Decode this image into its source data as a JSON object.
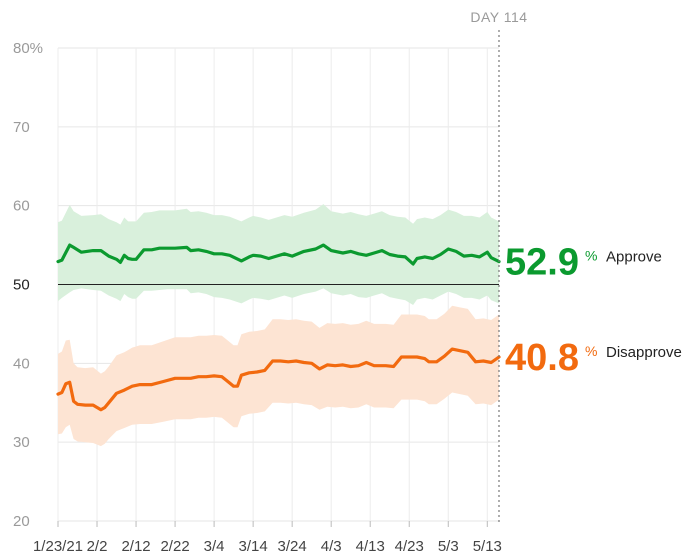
{
  "chart_data": {
    "type": "line",
    "x_ticks": [
      "1/23/21",
      "2/2",
      "2/12",
      "2/22",
      "3/4",
      "3/14",
      "3/24",
      "4/3",
      "4/13",
      "4/23",
      "5/3",
      "5/13"
    ],
    "y_ticks": [
      "80%",
      "70",
      "60",
      "50",
      "40",
      "30",
      "20"
    ],
    "ylim": [
      20,
      80
    ],
    "day_marker": "DAY 114",
    "reference_line": 50,
    "series": [
      {
        "name": "Approve",
        "color": "#0b9a2f",
        "band_color": "#d9f0dc",
        "current_value": "52.9",
        "pct_symbol": "%",
        "x_days": [
          0,
          1,
          3,
          4,
          6,
          9,
          11,
          13,
          15,
          16,
          17,
          18,
          19,
          20,
          22,
          24,
          26,
          28,
          30,
          33,
          34,
          36,
          38,
          40,
          42,
          44,
          47,
          49,
          50,
          52,
          54,
          56,
          58,
          60,
          63,
          66,
          68,
          70,
          73,
          75,
          77,
          79,
          81,
          83,
          85,
          87,
          89,
          91,
          92,
          94,
          96,
          98,
          100,
          102,
          104,
          106,
          108,
          110,
          111,
          113
        ],
        "values": [
          52.9,
          53.1,
          55.0,
          54.7,
          54.1,
          54.3,
          54.3,
          53.6,
          53.2,
          52.8,
          53.7,
          53.3,
          53.2,
          53.2,
          54.4,
          54.4,
          54.6,
          54.6,
          54.6,
          54.7,
          54.3,
          54.4,
          54.2,
          53.9,
          53.9,
          53.7,
          53.0,
          53.5,
          53.7,
          53.6,
          53.3,
          53.6,
          53.9,
          53.6,
          54.2,
          54.5,
          55.0,
          54.3,
          54.0,
          54.2,
          53.9,
          53.7,
          54.0,
          54.3,
          53.8,
          53.6,
          53.5,
          52.6,
          53.3,
          53.5,
          53.3,
          53.8,
          54.5,
          54.2,
          53.6,
          53.7,
          53.5,
          54.1,
          53.4,
          52.9
        ],
        "low": [
          47.9,
          48.3,
          49.0,
          49.3,
          49.5,
          49.3,
          49.2,
          48.6,
          48.2,
          47.9,
          48.8,
          48.4,
          48.2,
          48.2,
          49.2,
          49.2,
          49.3,
          49.4,
          49.4,
          49.4,
          48.9,
          49.0,
          48.8,
          48.4,
          48.3,
          48.1,
          47.6,
          48.1,
          48.3,
          48.2,
          48.0,
          48.3,
          48.6,
          48.3,
          48.8,
          49.1,
          49.5,
          48.9,
          48.6,
          48.8,
          48.4,
          48.3,
          48.6,
          48.9,
          48.4,
          48.2,
          48.0,
          47.4,
          48.1,
          48.3,
          48.1,
          48.6,
          49.1,
          48.8,
          48.3,
          48.3,
          48.1,
          48.6,
          48.0,
          47.6
        ],
        "high": [
          57.9,
          58.1,
          60.1,
          59.3,
          58.7,
          58.8,
          58.9,
          58.3,
          57.9,
          57.6,
          58.5,
          58.0,
          58.0,
          58.0,
          59.1,
          59.2,
          59.4,
          59.4,
          59.4,
          59.6,
          59.2,
          59.3,
          59.1,
          58.8,
          58.8,
          58.6,
          58.0,
          58.5,
          58.7,
          58.5,
          58.2,
          58.5,
          58.8,
          58.6,
          59.1,
          59.5,
          60.2,
          59.3,
          59.0,
          59.2,
          58.9,
          58.7,
          59.0,
          59.3,
          58.8,
          58.6,
          58.5,
          57.7,
          58.3,
          58.5,
          58.3,
          58.8,
          59.5,
          59.2,
          58.7,
          58.7,
          58.5,
          59.2,
          58.5,
          58.0
        ]
      },
      {
        "name": "Disapprove",
        "color": "#f26a0f",
        "band_color": "#fde4d3",
        "current_value": "40.8",
        "pct_symbol": "%",
        "x_days": [
          0,
          1,
          2,
          3,
          4,
          5,
          7,
          9,
          11,
          12,
          13,
          15,
          17,
          19,
          21,
          24,
          27,
          30,
          32,
          34,
          36,
          38,
          40,
          42,
          45,
          46,
          47,
          49,
          51,
          53,
          55,
          57,
          59,
          61,
          63,
          65,
          67,
          69,
          71,
          73,
          75,
          77,
          79,
          81,
          84,
          86,
          88,
          90,
          92,
          94,
          95,
          97,
          99,
          101,
          103,
          105,
          107,
          109,
          111,
          113
        ],
        "values": [
          36.1,
          36.3,
          37.4,
          37.6,
          35.2,
          34.8,
          34.7,
          34.7,
          34.1,
          34.4,
          35.0,
          36.2,
          36.6,
          37.1,
          37.3,
          37.3,
          37.7,
          38.1,
          38.1,
          38.1,
          38.3,
          38.3,
          38.4,
          38.3,
          37.1,
          37.1,
          38.5,
          38.8,
          38.9,
          39.1,
          40.3,
          40.3,
          40.2,
          40.3,
          40.1,
          40.0,
          39.3,
          39.8,
          39.7,
          39.8,
          39.6,
          39.7,
          40.1,
          39.7,
          39.7,
          39.6,
          40.8,
          40.8,
          40.8,
          40.6,
          40.2,
          40.2,
          40.9,
          41.8,
          41.6,
          41.4,
          40.2,
          40.3,
          40.1,
          40.8
        ],
        "low": [
          31.0,
          31.1,
          31.9,
          32.2,
          30.4,
          30.1,
          30.0,
          29.9,
          29.5,
          29.8,
          30.4,
          31.4,
          31.8,
          32.2,
          32.3,
          32.3,
          32.6,
          32.9,
          32.9,
          32.9,
          33.1,
          33.1,
          33.2,
          33.1,
          31.9,
          31.9,
          33.3,
          33.6,
          33.7,
          33.9,
          35.0,
          35.0,
          34.9,
          35.0,
          34.8,
          34.7,
          34.1,
          34.5,
          34.4,
          34.5,
          34.3,
          34.4,
          34.8,
          34.4,
          34.4,
          34.3,
          35.4,
          35.4,
          35.4,
          35.2,
          34.8,
          34.8,
          35.5,
          36.3,
          36.1,
          35.9,
          34.8,
          34.9,
          34.7,
          35.4
        ],
        "high": [
          41.2,
          41.5,
          42.9,
          43.0,
          40.0,
          39.5,
          39.4,
          39.5,
          38.7,
          39.0,
          39.6,
          41.0,
          41.4,
          42.0,
          42.3,
          42.3,
          42.8,
          43.3,
          43.3,
          43.3,
          43.5,
          43.5,
          43.6,
          43.5,
          42.3,
          42.3,
          43.7,
          44.0,
          44.1,
          44.3,
          45.6,
          45.6,
          45.5,
          45.6,
          45.4,
          45.3,
          44.5,
          45.1,
          45.0,
          45.1,
          44.9,
          45.0,
          45.4,
          45.0,
          45.0,
          44.9,
          46.2,
          46.2,
          46.2,
          46.0,
          45.6,
          45.6,
          46.3,
          47.3,
          47.1,
          46.9,
          45.6,
          45.7,
          45.5,
          46.2
        ]
      }
    ]
  }
}
